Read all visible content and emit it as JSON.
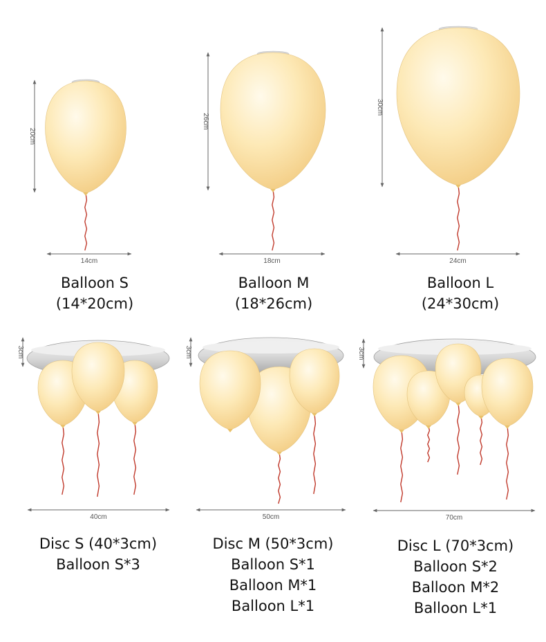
{
  "products": [
    {
      "width_label": "14cm",
      "height_label": "20cm",
      "name": "Balloon S",
      "size": "(14*20cm)"
    },
    {
      "width_label": "18cm",
      "height_label": "26cm",
      "name": "Balloon M",
      "size": "(18*26cm)"
    },
    {
      "width_label": "24cm",
      "height_label": "30cm",
      "name": "Balloon L",
      "size": "(24*30cm)"
    }
  ],
  "discs": [
    {
      "width_label": "40cm",
      "height_label": "3cm",
      "lines": [
        "Disc S (40*3cm)",
        "Balloon S*3"
      ]
    },
    {
      "width_label": "50cm",
      "height_label": "3cm",
      "lines": [
        "Disc M (50*3cm)",
        "Balloon S*1",
        "Balloon M*1",
        "Balloon L*1"
      ]
    },
    {
      "width_label": "70cm",
      "height_label": "3cm",
      "lines": [
        "Disc L (70*3cm)",
        "Balloon S*2",
        "Balloon M*2",
        "Balloon L*1"
      ]
    }
  ],
  "colors": {
    "balloon_light": "#fff6dc",
    "balloon_mid": "#f8dd9a",
    "balloon_dark": "#e9c16a",
    "string": "#c0392b",
    "disc": "#d3d3d3",
    "dimension_line": "#666666"
  }
}
